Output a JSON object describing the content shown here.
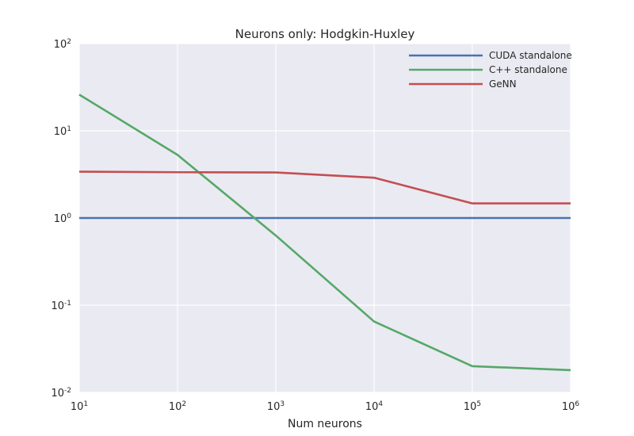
{
  "chart_data": {
    "type": "line",
    "title": "Neurons only: Hodgkin-Huxley",
    "xlabel": "Num neurons",
    "ylabel": "",
    "xscale": "log",
    "yscale": "log",
    "x": [
      10,
      100,
      1000,
      10000,
      100000,
      1000000
    ],
    "xlim": [
      10,
      1000000
    ],
    "ylim": [
      0.01,
      100
    ],
    "x_ticks": [
      {
        "base": "10",
        "exp": "1"
      },
      {
        "base": "10",
        "exp": "2"
      },
      {
        "base": "10",
        "exp": "3"
      },
      {
        "base": "10",
        "exp": "4"
      },
      {
        "base": "10",
        "exp": "5"
      },
      {
        "base": "10",
        "exp": "6"
      }
    ],
    "y_ticks": [
      {
        "base": "10",
        "exp": "-2"
      },
      {
        "base": "10",
        "exp": "-1"
      },
      {
        "base": "10",
        "exp": "0"
      },
      {
        "base": "10",
        "exp": "1"
      },
      {
        "base": "10",
        "exp": "2"
      }
    ],
    "grid": true,
    "legend_position": "top-right",
    "series": [
      {
        "name": "CUDA standalone",
        "color": "#4C72B0",
        "values": [
          1.0,
          1.0,
          1.0,
          1.0,
          1.0,
          1.0
        ]
      },
      {
        "name": "C++ standalone",
        "color": "#55A868",
        "values": [
          26,
          5.3,
          0.63,
          0.065,
          0.02,
          0.018
        ]
      },
      {
        "name": "GeNN",
        "color": "#C44E52",
        "values": [
          3.4,
          3.35,
          3.33,
          2.9,
          1.47,
          1.47
        ]
      }
    ]
  }
}
